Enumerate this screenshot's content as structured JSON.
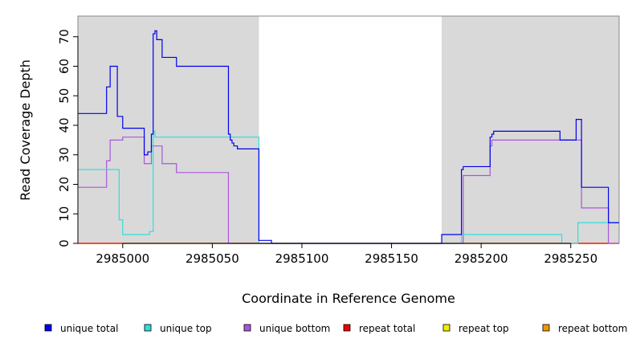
{
  "chart_data": {
    "type": "line",
    "xlabel": "Coordinate in Reference Genome",
    "ylabel": "Read Coverage Depth",
    "xlim": [
      2984975,
      2985277
    ],
    "ylim": [
      0,
      77
    ],
    "x_ticks": [
      2985000,
      2985050,
      2985100,
      2985150,
      2985200,
      2985250
    ],
    "y_ticks": [
      0,
      10,
      20,
      30,
      40,
      50,
      60,
      70
    ],
    "shaded_regions": [
      {
        "x": [
          2984975,
          2985076
        ]
      },
      {
        "x": [
          2985178,
          2985277
        ]
      }
    ],
    "series": [
      {
        "name": "unique total",
        "color": "#0000ee",
        "x": [
          2984975,
          2984991,
          2984992,
          2984993,
          2984996,
          2984997,
          2985000,
          2985011,
          2985012,
          2985014,
          2985015,
          2985016,
          2985017,
          2985018,
          2985019,
          2985022,
          2985030,
          2985058,
          2985059,
          2985060,
          2985061,
          2985062,
          2985063,
          2985064,
          2985076,
          2985083,
          2985178,
          2985189,
          2985190,
          2985204,
          2985205,
          2985206,
          2985207,
          2985244,
          2985253,
          2985256,
          2985271,
          2985277
        ],
        "y": [
          44,
          53,
          53,
          60,
          60,
          43,
          39,
          39,
          30,
          31,
          31,
          37,
          71,
          72,
          69,
          63,
          60,
          60,
          37,
          35,
          34,
          33,
          33,
          32,
          1,
          0,
          3,
          25,
          26,
          26,
          36,
          37,
          38,
          35,
          42,
          19,
          7,
          7
        ]
      },
      {
        "name": "unique top",
        "color": "#33dddd",
        "x": [
          2984975,
          2984996,
          2984998,
          2985000,
          2985013,
          2985015,
          2985016,
          2985017,
          2985018,
          2985076,
          2985178,
          2985189,
          2985245,
          2985254,
          2985271,
          2985277
        ],
        "y": [
          25,
          25,
          8,
          3,
          3,
          4,
          4,
          38,
          36,
          0,
          0,
          3,
          0,
          7,
          7,
          7
        ]
      },
      {
        "name": "unique bottom",
        "color": "#aa55dd",
        "x": [
          2984975,
          2984991,
          2984992,
          2984993,
          2985000,
          2985011,
          2985012,
          2985015,
          2985016,
          2985022,
          2985030,
          2985058,
          2985059,
          2985189,
          2985190,
          2985204,
          2985205,
          2985206,
          2985255,
          2985256,
          2985271,
          2985277
        ],
        "y": [
          19,
          28,
          28,
          35,
          36,
          36,
          27,
          27,
          33,
          27,
          24,
          24,
          0,
          0,
          23,
          23,
          33,
          35,
          35,
          12,
          0,
          0
        ]
      },
      {
        "name": "repeat total",
        "color": "#ee0000",
        "x": [
          2984975,
          2985277
        ],
        "y": [
          0,
          0
        ]
      },
      {
        "name": "repeat top",
        "color": "#eeee00",
        "x": [
          2984975,
          2985277
        ],
        "y": [
          0,
          0
        ]
      },
      {
        "name": "repeat bottom",
        "color": "#ee9900",
        "x": [
          2984975,
          2985277
        ],
        "y": [
          0,
          0
        ]
      }
    ],
    "legend": {
      "placement": "bottom",
      "entries": [
        "unique total",
        "unique top",
        "unique bottom",
        "repeat total",
        "repeat top",
        "repeat bottom"
      ]
    }
  }
}
